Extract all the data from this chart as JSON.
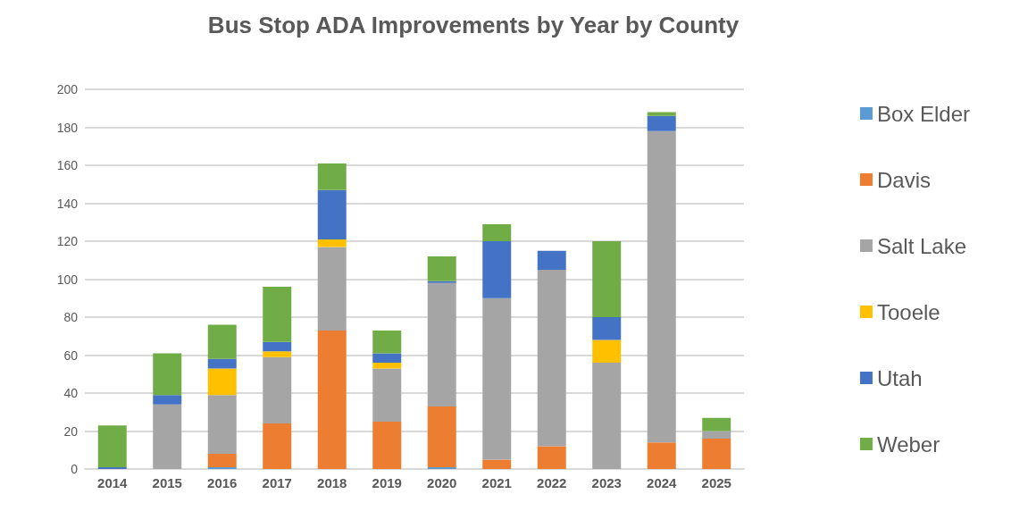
{
  "chart_data": {
    "type": "bar",
    "title": "Bus Stop ADA Improvements by Year by County",
    "stacked": true,
    "categories": [
      "2014",
      "2015",
      "2016",
      "2017",
      "2018",
      "2019",
      "2020",
      "2021",
      "2022",
      "2023",
      "2024",
      "2025"
    ],
    "series": [
      {
        "name": "Box Elder",
        "color": "#5b9bd5",
        "values": [
          0,
          0,
          1,
          0,
          0,
          0,
          1,
          0,
          0,
          0,
          0,
          0
        ]
      },
      {
        "name": "Davis",
        "color": "#ed7d31",
        "values": [
          0,
          0,
          7,
          24,
          73,
          25,
          32,
          5,
          12,
          0,
          14,
          16
        ]
      },
      {
        "name": "Salt Lake",
        "color": "#a5a5a5",
        "values": [
          0,
          34,
          31,
          35,
          44,
          28,
          65,
          85,
          93,
          56,
          164,
          4
        ]
      },
      {
        "name": "Tooele",
        "color": "#ffc000",
        "values": [
          0,
          0,
          14,
          3,
          4,
          3,
          0,
          0,
          0,
          12,
          0,
          0
        ]
      },
      {
        "name": "Utah",
        "color": "#4472c4",
        "values": [
          1,
          5,
          5,
          5,
          26,
          5,
          1,
          30,
          10,
          12,
          8,
          0
        ]
      },
      {
        "name": "Weber",
        "color": "#70ad47",
        "values": [
          22,
          22,
          18,
          29,
          14,
          12,
          13,
          9,
          0,
          40,
          2,
          7
        ]
      }
    ],
    "ylim": [
      0,
      200
    ],
    "yticks": [
      0,
      20,
      40,
      60,
      80,
      100,
      120,
      140,
      160,
      180,
      200
    ],
    "grid": "y",
    "legend": "right"
  }
}
